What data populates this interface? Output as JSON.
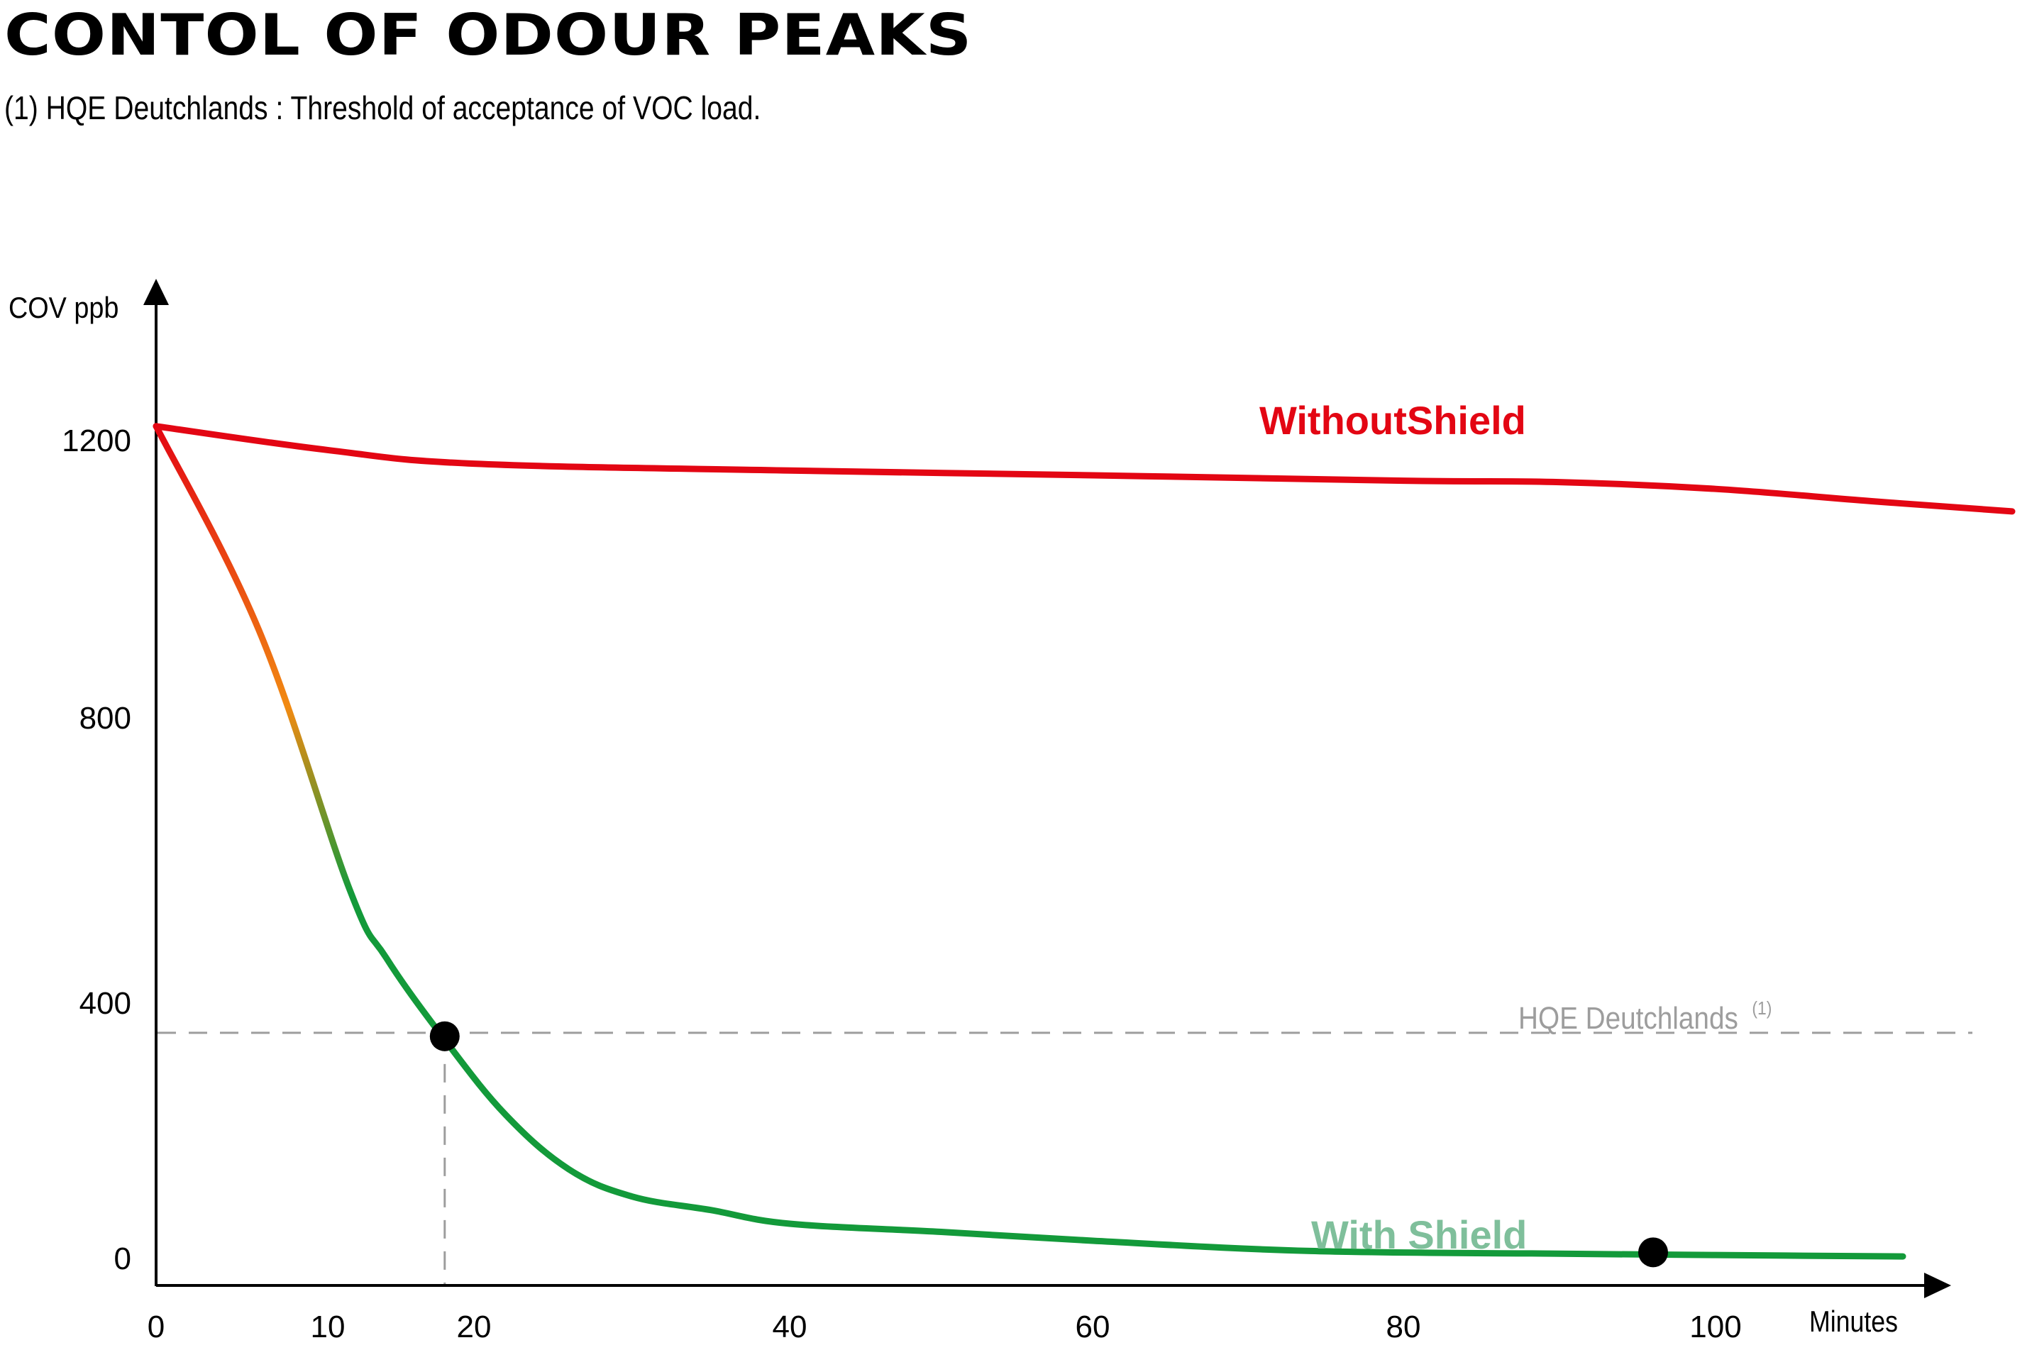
{
  "title": "CONTOL OF ODOUR PEAKS",
  "subtitle": "(1) HQE Deutchlands : Threshold of acceptance of VOC load.",
  "chart_data": {
    "type": "line",
    "ylabel": "COV ppb",
    "xlabel": "Minutes",
    "x_ticks": [
      0,
      10,
      20,
      40,
      60,
      80,
      100
    ],
    "y_ticks": [
      0,
      400,
      800,
      1200
    ],
    "xlim": [
      0,
      117
    ],
    "ylim": [
      -40,
      1400
    ],
    "colors": {
      "without_shield": "#e30613",
      "with_shield": "#139a3a",
      "with_shield_label": "#7fbf9b",
      "threshold": "#9d9d9d",
      "gradient_top": "#e30613",
      "gradient_mid": "#f18a12"
    },
    "series": [
      {
        "name": "WithoutShield",
        "points": [
          [
            0,
            1220
          ],
          [
            10,
            1185
          ],
          [
            20,
            1165
          ],
          [
            40,
            1155
          ],
          [
            60,
            1148
          ],
          [
            80,
            1140
          ],
          [
            90,
            1138
          ],
          [
            100,
            1128
          ],
          [
            110,
            1110
          ],
          [
            119,
            1095
          ]
        ]
      },
      {
        "name": "With Shield",
        "points": [
          [
            0,
            1220
          ],
          [
            6,
            920
          ],
          [
            11.5,
            540
          ],
          [
            14,
            440
          ],
          [
            18,
            320
          ],
          [
            22,
            210
          ],
          [
            26,
            130
          ],
          [
            30,
            90
          ],
          [
            35,
            70
          ],
          [
            40,
            50
          ],
          [
            50,
            38
          ],
          [
            60,
            25
          ],
          [
            74,
            10
          ],
          [
            90,
            6
          ],
          [
            100,
            4
          ],
          [
            112,
            2
          ]
        ]
      }
    ],
    "threshold": {
      "label": "HQE Deutchlands",
      "superscript": "(1)",
      "value": 330
    },
    "markers": [
      {
        "x": 18,
        "y": 325
      },
      {
        "x": 96,
        "y": 8
      }
    ]
  }
}
